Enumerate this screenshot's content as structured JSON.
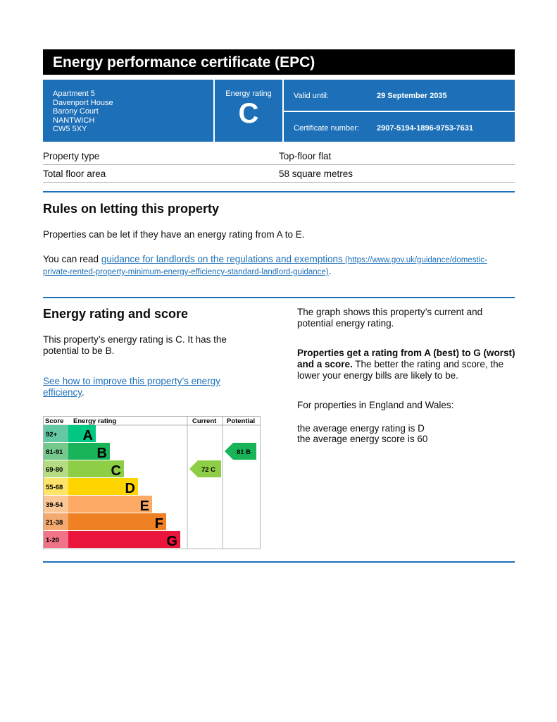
{
  "header": {
    "title": "Energy performance certificate (EPC)"
  },
  "address": [
    "Apartment 5",
    "Davenport House",
    "Barony Court",
    "NANTWICH",
    "CW5 5XY"
  ],
  "rating_box": {
    "label": "Energy rating",
    "value": "C"
  },
  "valid": {
    "label": "Valid until:",
    "value": "29 September 2035"
  },
  "certificate": {
    "label": "Certificate number:",
    "value": "2907-5194-1896-9753-7631"
  },
  "property": [
    {
      "label": "Property type",
      "value": "Top-floor flat"
    },
    {
      "label": "Total floor area",
      "value": "58 square metres"
    }
  ],
  "rules": {
    "heading": "Rules on letting this property",
    "p1": "Properties can be let if they have an energy rating from A to E.",
    "p2_prefix": "You can read ",
    "p2_link": "guidance for landlords on the regulations and exemptions",
    "p2_url": " (https://www.gov.uk/guidance/domestic-private-rented-property-minimum-energy-efficiency-standard-landlord-guidance)",
    "p2_suffix": "."
  },
  "score_section": {
    "heading": "Energy rating and score",
    "p1": "This property’s energy rating is C. It has the potential to be B.",
    "link": "See how to improve this property’s energy efficiency",
    "link_suffix": ".",
    "right_p1": "The graph shows this property’s current and potential energy rating.",
    "right_bold": "Properties get a rating from A (best) to G (worst) and a score.",
    "right_p2": " The better the rating and score, the lower your energy bills are likely to be.",
    "right_p3": "For properties in England and Wales:",
    "right_p4": "the average energy rating is D",
    "right_p5": "the average energy score is 60"
  },
  "chart_data": {
    "type": "table",
    "headers": [
      "Score",
      "Energy rating",
      "Current",
      "Potential"
    ],
    "bands": [
      {
        "score": "92+",
        "letter": "A",
        "color": "#00c781",
        "light": "#64c9a3"
      },
      {
        "score": "81-91",
        "letter": "B",
        "color": "#19b459",
        "light": "#75c98d"
      },
      {
        "score": "69-80",
        "letter": "C",
        "color": "#8dce46",
        "light": "#b5dc85"
      },
      {
        "score": "55-68",
        "letter": "D",
        "color": "#ffd500",
        "light": "#ffe46a"
      },
      {
        "score": "39-54",
        "letter": "E",
        "color": "#fcaa65",
        "light": "#fcc796"
      },
      {
        "score": "21-38",
        "letter": "F",
        "color": "#ef8023",
        "light": "#f3a970"
      },
      {
        "score": "1-20",
        "letter": "G",
        "color": "#e9153b",
        "light": "#f07388"
      }
    ],
    "current": {
      "score": 72,
      "letter": "C",
      "label": "72 C"
    },
    "potential": {
      "score": 81,
      "letter": "B",
      "label": "81 B"
    }
  }
}
